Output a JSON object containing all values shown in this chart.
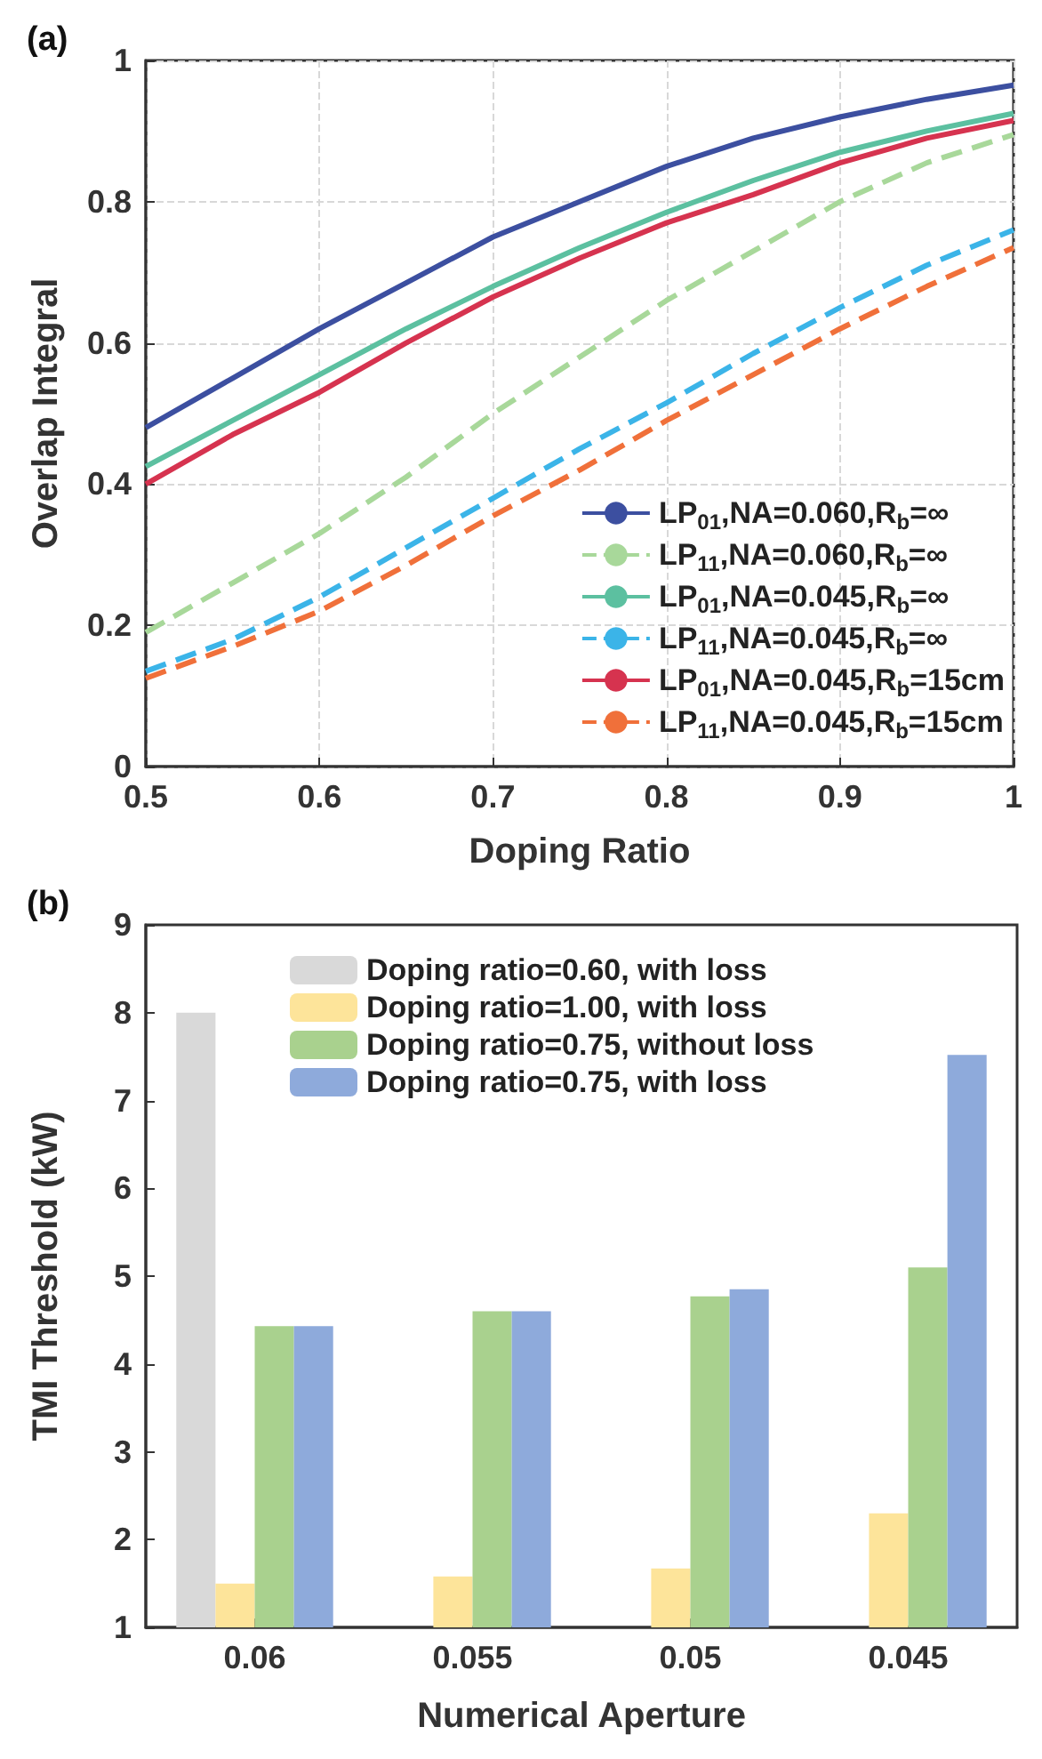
{
  "chart_data": [
    {
      "type": "line",
      "title": "(a)",
      "xlabel": "Doping Ratio",
      "ylabel": "Overlap Integral",
      "x": [
        0.5,
        0.55,
        0.6,
        0.65,
        0.7,
        0.75,
        0.8,
        0.85,
        0.9,
        0.95,
        1.0
      ],
      "xlim": [
        0.5,
        1
      ],
      "xticks": [
        0.5,
        0.6,
        0.7,
        0.8,
        0.9,
        1
      ],
      "ylim": [
        0,
        1
      ],
      "yticks": [
        0,
        0.2,
        0.4,
        0.6,
        0.8,
        1
      ],
      "grid": true,
      "legend": "bottom right",
      "marker": "none",
      "series": [
        {
          "name": "LP$_{01}$,NA=0.060,R$_{b}$=∞",
          "color": "#3c4fa0",
          "line_style": "solid",
          "values": [
            0.48,
            0.55,
            0.62,
            0.685,
            0.75,
            0.8,
            0.85,
            0.89,
            0.92,
            0.945,
            0.965
          ]
        },
        {
          "name": "LP$_{11}$,NA=0.060,R$_{b}$=∞",
          "color": "#a8d89a",
          "line_style": "dashed",
          "values": [
            0.19,
            0.26,
            0.33,
            0.41,
            0.5,
            0.58,
            0.66,
            0.73,
            0.8,
            0.855,
            0.895
          ]
        },
        {
          "name": "LP$_{01}$,NA=0.045,R$_{b}$=∞",
          "color": "#5cc0a0",
          "line_style": "solid",
          "values": [
            0.425,
            0.49,
            0.555,
            0.62,
            0.68,
            0.735,
            0.785,
            0.83,
            0.87,
            0.9,
            0.925
          ]
        },
        {
          "name": "LP$_{11}$,NA=0.045,R$_{b}$=∞",
          "color": "#3bb4e8",
          "line_style": "dashed",
          "values": [
            0.135,
            0.18,
            0.24,
            0.31,
            0.38,
            0.45,
            0.515,
            0.585,
            0.65,
            0.71,
            0.76
          ]
        },
        {
          "name": "LP$_{01}$,NA=0.045,R$_{b}$=15cm",
          "color": "#d6334f",
          "line_style": "solid",
          "values": [
            0.4,
            0.47,
            0.53,
            0.6,
            0.665,
            0.72,
            0.77,
            0.81,
            0.855,
            0.89,
            0.915
          ]
        },
        {
          "name": "LP$_{11}$,NA=0.045,R$_{b}$=15cm",
          "color": "#f0703a",
          "line_style": "dashed",
          "values": [
            0.125,
            0.17,
            0.22,
            0.285,
            0.355,
            0.42,
            0.49,
            0.555,
            0.62,
            0.68,
            0.735
          ]
        }
      ]
    },
    {
      "type": "bar",
      "title": "(b)",
      "xlabel": "Numerical Aperture",
      "ylabel": "TMI Threshold (kW)",
      "categories": [
        "0.06",
        "0.055",
        "0.05",
        "0.045"
      ],
      "ylim": [
        1,
        9
      ],
      "yticks": [
        1,
        2,
        3,
        4,
        5,
        6,
        7,
        8,
        9
      ],
      "grid": false,
      "legend": "top",
      "series": [
        {
          "name": "Doping ratio=0.60, with loss",
          "color": "#d9d9d9",
          "values": [
            8.0,
            null,
            null,
            null
          ]
        },
        {
          "name": "Doping ratio=1.00, with loss",
          "color": "#fde49a",
          "values": [
            1.5,
            1.58,
            1.67,
            2.3
          ]
        },
        {
          "name": "Doping ratio=0.75, without loss",
          "color": "#a9d18e",
          "values": [
            4.43,
            4.6,
            4.77,
            5.1
          ]
        },
        {
          "name": "Doping ratio=0.75, with loss",
          "color": "#8eaadb",
          "values": [
            4.43,
            4.6,
            4.85,
            7.52
          ]
        }
      ]
    }
  ]
}
